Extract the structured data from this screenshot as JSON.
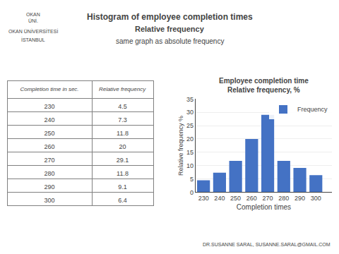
{
  "title": "Histogram of employee completion times",
  "subtitle": "Relative frequency",
  "annotations": [
    "same graph as absolute frequency",
    "OKAN\nÜNİ.",
    "OKAN ÜNİVERSİTESİ",
    "İSTANBUL",
    "DR.SUSANNE SARAL, SUSANNE.SARAL@GMAIL.COM"
  ],
  "chart_data": [
    {
      "type": "table",
      "columns": [
        "Completion time in sec.",
        "Relative frequency"
      ],
      "rows": [
        [
          "230",
          "4.5"
        ],
        [
          "240",
          "7.3"
        ],
        [
          "250",
          "11.8"
        ],
        [
          "260",
          "20"
        ],
        [
          "270",
          "29.1"
        ],
        [
          "280",
          "11.8"
        ],
        [
          "290",
          "9.1"
        ],
        [
          "300",
          "6.4"
        ]
      ]
    },
    {
      "type": "bar",
      "title": "Employee completion time\nRelative frequency, %",
      "xlabel": "Completion times",
      "ylabel": "Relative frequency %",
      "x": [
        230,
        240,
        250,
        260,
        270,
        280,
        290,
        300
      ],
      "series": [
        {
          "name": "Frequency",
          "color": "#4472C4",
          "values": [
            4.5,
            7.3,
            11.8,
            20.0,
            29.1,
            11.8,
            9.1,
            6.4
          ]
        }
      ],
      "xlim": [
        225,
        310
      ],
      "xticks": [
        230,
        240,
        250,
        260,
        270,
        280,
        290,
        300
      ],
      "ylim": [
        0,
        35
      ],
      "yticks": [
        0,
        5,
        10,
        15,
        20,
        25,
        30,
        35
      ],
      "grid": true,
      "legend": "upper right"
    }
  ]
}
